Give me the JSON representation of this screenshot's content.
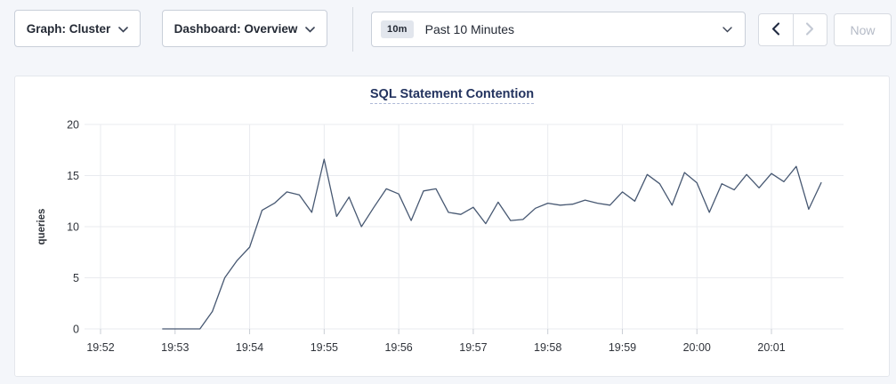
{
  "toolbar": {
    "graph_dropdown_label": "Graph: Cluster",
    "dashboard_dropdown_label": "Dashboard: Overview",
    "time_window_badge": "10m",
    "time_window_label": "Past 10 Minutes",
    "now_button_label": "Now",
    "icons": {
      "graph_chevron": "chevron-down",
      "dashboard_chevron": "chevron-down",
      "time_chevron": "chevron-down",
      "prev_arrow": "chevron-left",
      "next_arrow": "chevron-right"
    }
  },
  "colors": {
    "page_background": "#f4f6fa",
    "card_background": "#ffffff",
    "series_line": "#475872",
    "title_text": "#23335f",
    "title_underline": "#aeb9d6",
    "gridline": "#e9ebef",
    "tick_mark": "#c9cdd4",
    "axis_text": "#30343b",
    "disabled_text": "#b4bac6"
  },
  "chart_data": {
    "type": "line",
    "title": "SQL Statement Contention",
    "ylabel": "queries",
    "ylim": [
      0,
      20
    ],
    "yticks": [
      0,
      5,
      10,
      15,
      20
    ],
    "x_tick_labels": [
      "19:52",
      "19:53",
      "19:54",
      "19:55",
      "19:56",
      "19:57",
      "19:58",
      "19:59",
      "20:00",
      "20:01"
    ],
    "x_domain_minutes": 10,
    "grid": true,
    "legend": "none",
    "series": [
      {
        "name": "queries",
        "color": "#475872",
        "points": [
          [
            "19:52:50",
            0
          ],
          [
            "19:53:00",
            0
          ],
          [
            "19:53:10",
            0
          ],
          [
            "19:53:20",
            0
          ],
          [
            "19:53:30",
            1.7
          ],
          [
            "19:53:40",
            5.0
          ],
          [
            "19:53:50",
            6.7
          ],
          [
            "19:54:00",
            8.0
          ],
          [
            "19:54:10",
            11.6
          ],
          [
            "19:54:20",
            12.3
          ],
          [
            "19:54:30",
            13.4
          ],
          [
            "19:54:40",
            13.1
          ],
          [
            "19:54:50",
            11.4
          ],
          [
            "19:55:00",
            16.6
          ],
          [
            "19:55:10",
            11.0
          ],
          [
            "19:55:20",
            12.9
          ],
          [
            "19:55:30",
            10.0
          ],
          [
            "19:55:40",
            11.9
          ],
          [
            "19:55:50",
            13.7
          ],
          [
            "19:56:00",
            13.2
          ],
          [
            "19:56:10",
            10.6
          ],
          [
            "19:56:20",
            13.5
          ],
          [
            "19:56:30",
            13.7
          ],
          [
            "19:56:40",
            11.4
          ],
          [
            "19:56:50",
            11.2
          ],
          [
            "19:57:00",
            11.9
          ],
          [
            "19:57:10",
            10.3
          ],
          [
            "19:57:20",
            12.4
          ],
          [
            "19:57:30",
            10.6
          ],
          [
            "19:57:40",
            10.7
          ],
          [
            "19:57:50",
            11.8
          ],
          [
            "19:58:00",
            12.3
          ],
          [
            "19:58:10",
            12.1
          ],
          [
            "19:58:20",
            12.2
          ],
          [
            "19:58:30",
            12.6
          ],
          [
            "19:58:40",
            12.3
          ],
          [
            "19:58:50",
            12.1
          ],
          [
            "19:59:00",
            13.4
          ],
          [
            "19:59:10",
            12.5
          ],
          [
            "19:59:20",
            15.1
          ],
          [
            "19:59:30",
            14.2
          ],
          [
            "19:59:40",
            12.1
          ],
          [
            "19:59:50",
            15.3
          ],
          [
            "20:00:00",
            14.3
          ],
          [
            "20:00:10",
            11.4
          ],
          [
            "20:00:20",
            14.2
          ],
          [
            "20:00:30",
            13.6
          ],
          [
            "20:00:40",
            15.1
          ],
          [
            "20:00:50",
            13.8
          ],
          [
            "20:01:00",
            15.2
          ],
          [
            "20:01:10",
            14.4
          ],
          [
            "20:01:20",
            15.9
          ],
          [
            "20:01:30",
            11.7
          ],
          [
            "20:01:40",
            14.3
          ]
        ]
      }
    ]
  }
}
